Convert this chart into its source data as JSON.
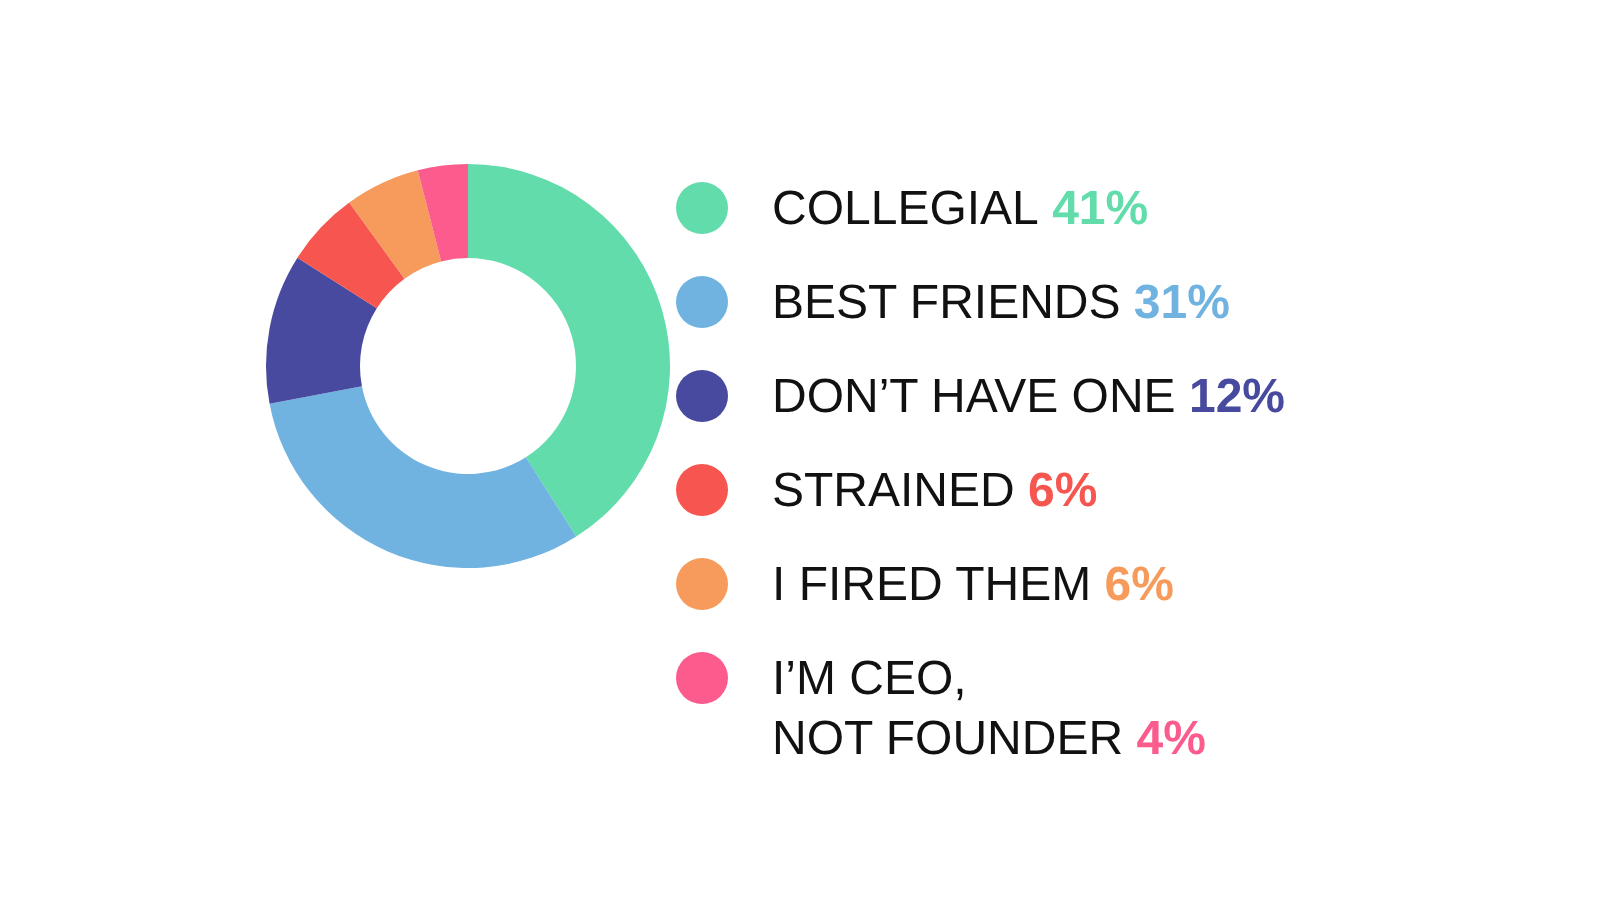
{
  "chart_data": {
    "type": "donut",
    "categories": [
      "COLLEGIAL",
      "BEST FRIENDS",
      "DON’T HAVE ONE",
      "STRAINED",
      "I FIRED THEM",
      "I’M CEO,\nNOT FOUNDER"
    ],
    "values": [
      41,
      31,
      12,
      6,
      6,
      4
    ],
    "colors": [
      "#62dcab",
      "#70b3e1",
      "#474a9e",
      "#f6564f",
      "#f79b5c",
      "#fc5b8d"
    ],
    "value_labels": [
      "41%",
      "31%",
      "12%",
      "6%",
      "6%",
      "4%"
    ],
    "legend": "right"
  }
}
